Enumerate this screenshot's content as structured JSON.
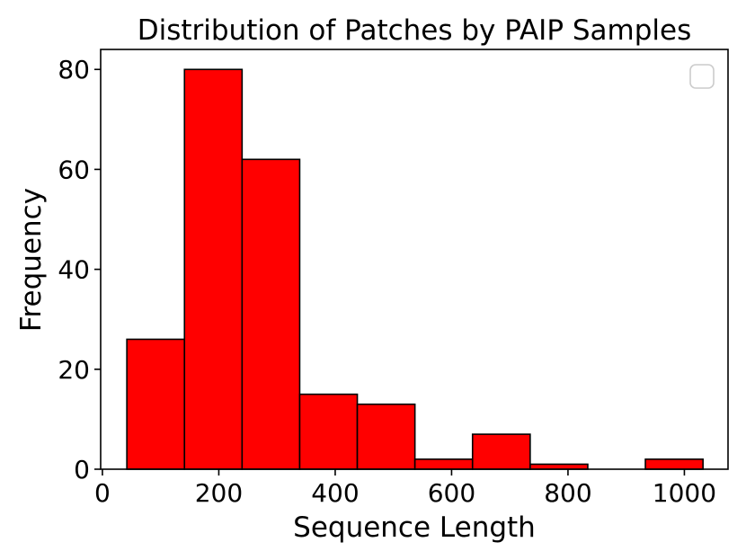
{
  "chart_data": {
    "type": "bar",
    "title": "Distribution of Patches by PAIP Samples",
    "xlabel": "Sequence Length",
    "ylabel": "Frequency",
    "xlim": [
      -3,
      1075
    ],
    "ylim": [
      0,
      84
    ],
    "x_ticks": [
      0,
      200,
      400,
      600,
      800,
      1000
    ],
    "y_ticks": [
      0,
      20,
      40,
      60,
      80
    ],
    "bins": [
      {
        "start": 42,
        "end": 141,
        "count": 26
      },
      {
        "start": 141,
        "end": 240,
        "count": 80
      },
      {
        "start": 240,
        "end": 339,
        "count": 62
      },
      {
        "start": 339,
        "end": 438,
        "count": 15
      },
      {
        "start": 438,
        "end": 537,
        "count": 13
      },
      {
        "start": 537,
        "end": 636,
        "count": 2
      },
      {
        "start": 636,
        "end": 735,
        "count": 7
      },
      {
        "start": 735,
        "end": 834,
        "count": 1
      },
      {
        "start": 834,
        "end": 933,
        "count": 0
      },
      {
        "start": 933,
        "end": 1032,
        "count": 2
      }
    ],
    "bar_color": "#ff0000",
    "edge_color": "#000000",
    "legend": {
      "placement": "upper-right",
      "entries": []
    },
    "grid": false
  }
}
